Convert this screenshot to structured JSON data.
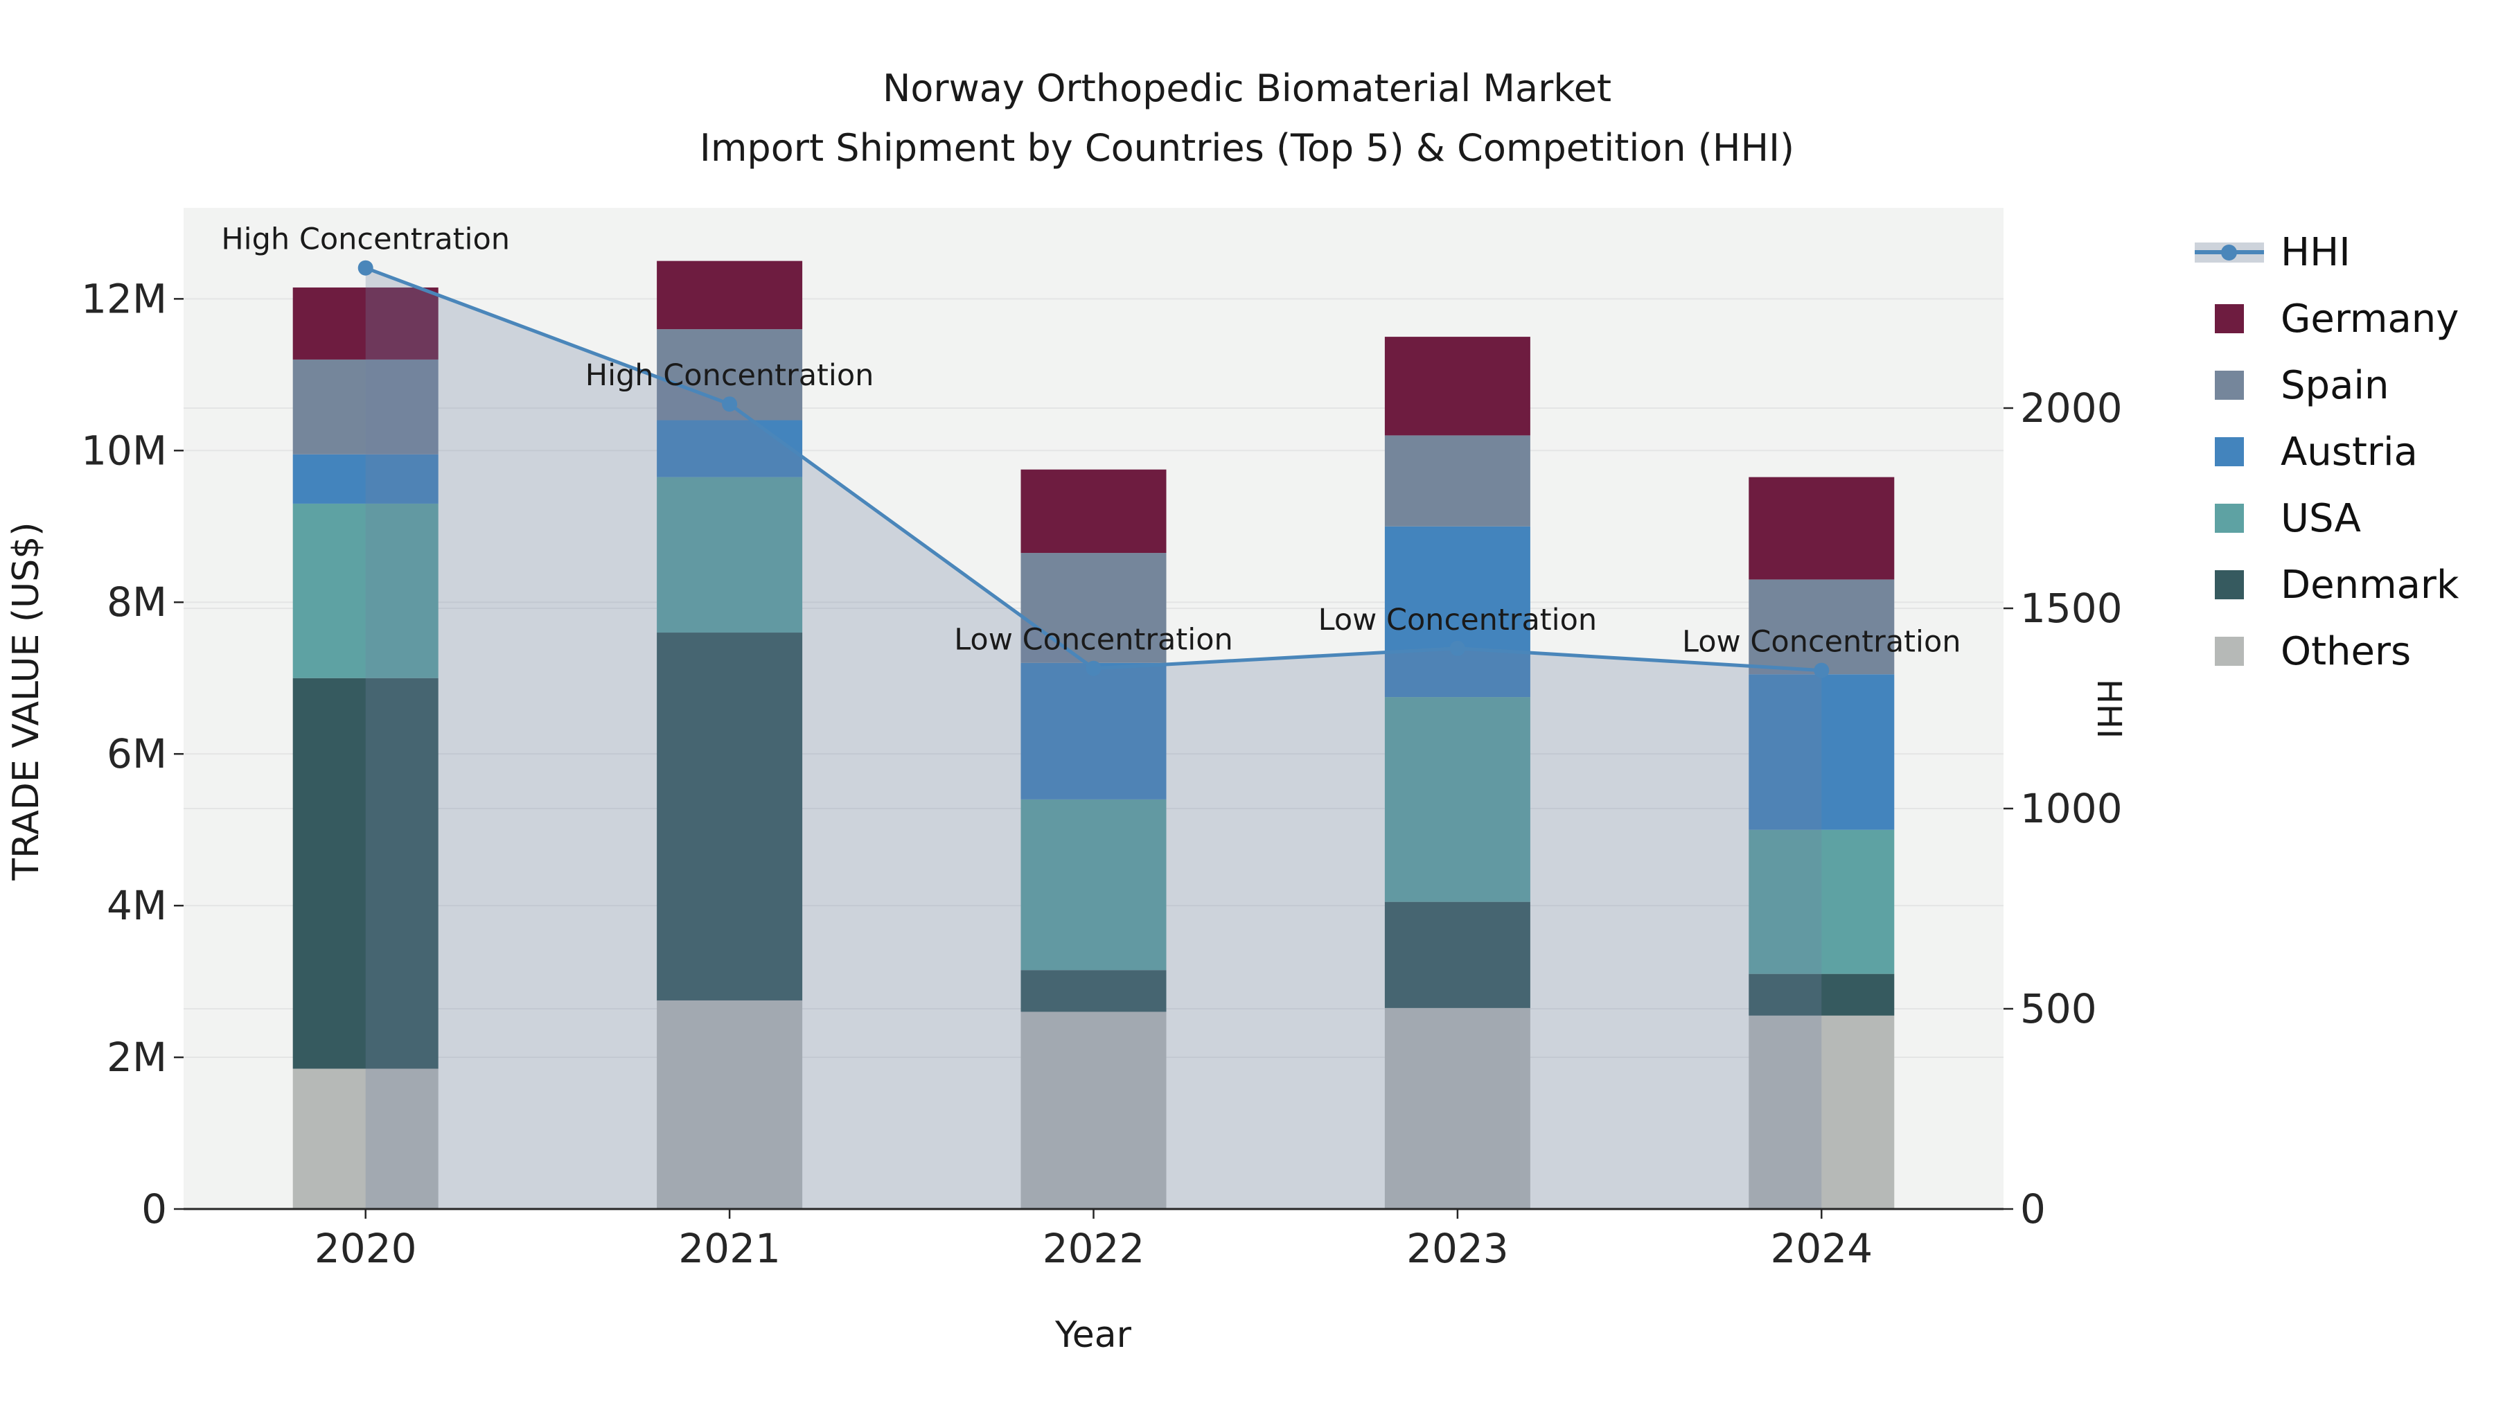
{
  "title": {
    "line1": "Norway Orthopedic Biomaterial Market",
    "line2": "Import Shipment by Countries (Top 5) & Competition (HHI)"
  },
  "axes": {
    "x_label": "Year",
    "left_label": "TRADE VALUE (US$)",
    "right_label": "HHI",
    "left_tick_labels": [
      "0",
      "2M",
      "4M",
      "6M",
      "8M",
      "10M",
      "12M"
    ],
    "left_tick_values": [
      0,
      2000000,
      4000000,
      6000000,
      8000000,
      10000000,
      12000000
    ],
    "right_tick_labels": [
      "0",
      "500",
      "1000",
      "1500",
      "2000"
    ],
    "right_tick_values": [
      0,
      500,
      1000,
      1500,
      2000
    ]
  },
  "legend": {
    "items": [
      {
        "label": "HHI",
        "type": "line"
      },
      {
        "label": "Germany",
        "type": "patch"
      },
      {
        "label": "Spain",
        "type": "patch"
      },
      {
        "label": "Austria",
        "type": "patch"
      },
      {
        "label": "USA",
        "type": "patch"
      },
      {
        "label": "Denmark",
        "type": "patch"
      },
      {
        "label": "Others",
        "type": "patch"
      }
    ]
  },
  "annotations": [
    {
      "year": "2020",
      "text": "High Concentration"
    },
    {
      "year": "2021",
      "text": "High Concentration"
    },
    {
      "year": "2022",
      "text": "Low Concentration"
    },
    {
      "year": "2023",
      "text": "Low Concentration"
    },
    {
      "year": "2024",
      "text": "Low Concentration"
    }
  ],
  "colors": {
    "Germany": "#6E1C40",
    "Spain": "#75869B",
    "Austria": "#4384BD",
    "USA": "#5EA2A3",
    "Denmark": "#365A5F",
    "Others": "#B6B9B7",
    "hhi_line": "#4A86BA",
    "hhi_fill": "rgba(110,130,160,0.28)",
    "hhi_legend_band": "#CDD3DB",
    "plot_bg": "#F2F3F2",
    "grid": "#E4E5E5",
    "axis": "#262626",
    "text": "#1A1A1A"
  },
  "chart_data": {
    "type": "bar",
    "subtype": "stacked-bars-with-line-overlay",
    "title": "Norway Orthopedic Biomaterial Market\nImport Shipment by Countries (Top 5) & Competition (HHI)",
    "xlabel": "Year",
    "ylabel": "TRADE VALUE (US$)",
    "ylabel_right": "HHI",
    "categories": [
      "2020",
      "2021",
      "2022",
      "2023",
      "2024"
    ],
    "series": [
      {
        "name": "Others",
        "values": [
          1850000,
          2750000,
          2600000,
          2650000,
          2550000
        ]
      },
      {
        "name": "Denmark",
        "values": [
          5150000,
          4850000,
          550000,
          1400000,
          550000
        ]
      },
      {
        "name": "USA",
        "values": [
          2300000,
          2050000,
          2250000,
          2700000,
          1900000
        ]
      },
      {
        "name": "Austria",
        "values": [
          650000,
          750000,
          1800000,
          2250000,
          2050000
        ]
      },
      {
        "name": "Spain",
        "values": [
          1250000,
          1200000,
          1450000,
          1200000,
          1250000
        ]
      },
      {
        "name": "Germany",
        "values": [
          950000,
          900000,
          1100000,
          1300000,
          1350000
        ]
      }
    ],
    "stack_order_bottom_to_top": [
      "Others",
      "Denmark",
      "USA",
      "Austria",
      "Spain",
      "Germany"
    ],
    "totals": [
      12150000,
      12500000,
      9750000,
      11500000,
      9650000
    ],
    "line_series": {
      "name": "HHI",
      "axis": "right",
      "style": "line+markers+area",
      "values": [
        2350,
        2010,
        1350,
        1400,
        1345
      ]
    },
    "ylim_left": [
      0,
      13200000
    ],
    "ylim_right": [
      0,
      2500
    ],
    "grid": true,
    "legend_position": "right-outside"
  }
}
